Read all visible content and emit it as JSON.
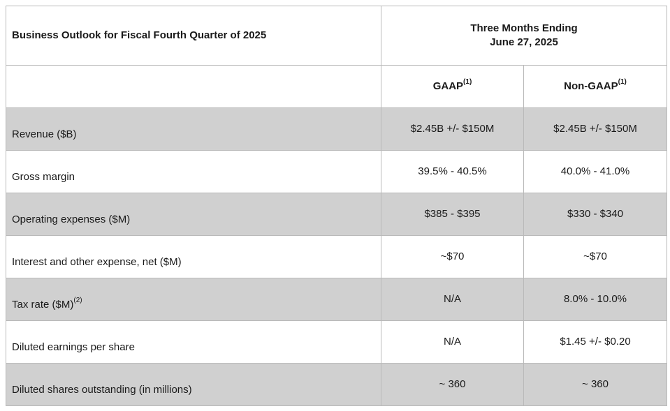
{
  "table": {
    "title": "Business Outlook for Fiscal Fourth Quarter of 2025",
    "period_line1": "Three Months Ending",
    "period_line2": "June 27, 2025",
    "col_gaap": "GAAP",
    "col_gaap_note": "(1)",
    "col_nongaap": "Non-GAAP",
    "col_nongaap_note": "(1)",
    "rows": [
      {
        "label": "Revenue ($B)",
        "note": "",
        "gaap": "$2.45B +/- $150M",
        "nongaap": "$2.45B +/- $150M"
      },
      {
        "label": "Gross margin",
        "note": "",
        "gaap": "39.5% - 40.5%",
        "nongaap": "40.0% - 41.0%"
      },
      {
        "label": "Operating expenses ($M)",
        "note": "",
        "gaap": "$385 - $395",
        "nongaap": "$330 - $340"
      },
      {
        "label": "Interest and other expense, net ($M)",
        "note": "",
        "gaap": "~$70",
        "nongaap": "~$70"
      },
      {
        "label": "Tax rate ($M)",
        "note": "(2)",
        "gaap": "N/A",
        "nongaap": "8.0% - 10.0%"
      },
      {
        "label": "Diluted earnings per share",
        "note": "",
        "gaap": "N/A",
        "nongaap": "$1.45 +/- $0.20"
      },
      {
        "label": "Diluted shares outstanding (in millions)",
        "note": "",
        "gaap": "~ 360",
        "nongaap": "~ 360"
      }
    ],
    "colors": {
      "shaded_row": "#d0d0d0",
      "border": "#b9b9b9"
    }
  }
}
